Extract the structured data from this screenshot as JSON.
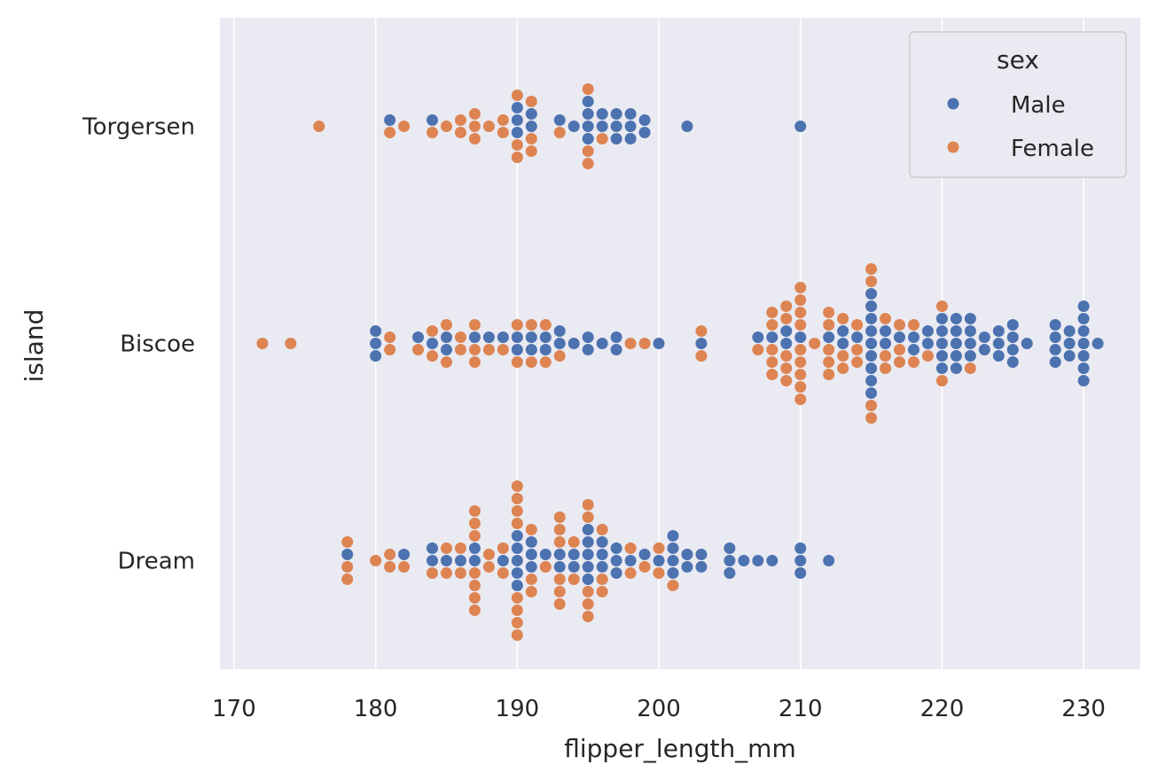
{
  "chart_data": {
    "type": "scatter",
    "subtype": "swarm",
    "title": "",
    "xlabel": "flipper_length_mm",
    "ylabel": "island",
    "xlim": [
      169,
      234
    ],
    "x_ticks": [
      170,
      180,
      190,
      200,
      210,
      220,
      230
    ],
    "categories": [
      "Torgersen",
      "Biscoe",
      "Dream"
    ],
    "grid": "vertical",
    "legend": {
      "title": "sex",
      "placement": "top-right"
    },
    "series": [
      {
        "name": "Male",
        "color": "#4c72b0",
        "points": {
          "Torgersen": [
            181,
            184,
            190,
            190,
            190,
            191,
            191,
            193,
            194,
            195,
            195,
            195,
            195,
            196,
            196,
            197,
            197,
            197,
            198,
            198,
            198,
            199,
            199,
            202,
            210
          ],
          "Biscoe": [
            180,
            180,
            180,
            183,
            184,
            185,
            185,
            187,
            188,
            189,
            190,
            190,
            191,
            191,
            192,
            192,
            193,
            193,
            194,
            195,
            195,
            196,
            197,
            197,
            200,
            203,
            207,
            208,
            209,
            209,
            210,
            212,
            213,
            213,
            214,
            215,
            215,
            215,
            215,
            215,
            215,
            215,
            215,
            215,
            216,
            216,
            217,
            218,
            218,
            219,
            219,
            220,
            220,
            220,
            220,
            220,
            221,
            221,
            221,
            221,
            221,
            222,
            222,
            222,
            222,
            223,
            223,
            224,
            224,
            224,
            225,
            225,
            225,
            225,
            226,
            228,
            228,
            228,
            228,
            229,
            229,
            229,
            230,
            230,
            230,
            230,
            230,
            230,
            230,
            231
          ],
          "Dream": [
            178,
            182,
            184,
            184,
            185,
            186,
            187,
            187,
            189,
            190,
            190,
            190,
            190,
            190,
            191,
            191,
            191,
            192,
            193,
            193,
            194,
            194,
            195,
            195,
            195,
            195,
            195,
            196,
            196,
            196,
            197,
            197,
            197,
            198,
            199,
            200,
            201,
            201,
            201,
            201,
            202,
            202,
            203,
            203,
            205,
            205,
            205,
            206,
            207,
            208,
            210,
            210,
            210,
            212
          ]
        }
      },
      {
        "name": "Female",
        "color": "#dd8452",
        "points": {
          "Torgersen": [
            176,
            181,
            182,
            184,
            185,
            186,
            186,
            187,
            187,
            187,
            188,
            189,
            189,
            190,
            190,
            190,
            191,
            191,
            191,
            193,
            195,
            195,
            195,
            196
          ],
          "Biscoe": [
            172,
            174,
            181,
            181,
            183,
            184,
            184,
            185,
            185,
            186,
            186,
            187,
            187,
            187,
            188,
            189,
            190,
            190,
            191,
            191,
            192,
            192,
            193,
            198,
            199,
            203,
            203,
            207,
            208,
            208,
            208,
            208,
            208,
            209,
            209,
            209,
            209,
            209,
            210,
            210,
            210,
            210,
            210,
            210,
            210,
            210,
            210,
            211,
            212,
            212,
            212,
            212,
            212,
            213,
            213,
            213,
            214,
            214,
            214,
            215,
            215,
            215,
            215,
            216,
            216,
            216,
            217,
            217,
            217,
            218,
            218,
            219,
            220,
            220,
            222
          ],
          "Dream": [
            178,
            178,
            178,
            180,
            181,
            181,
            182,
            184,
            185,
            185,
            186,
            186,
            187,
            187,
            187,
            187,
            187,
            187,
            187,
            188,
            188,
            189,
            189,
            190,
            190,
            190,
            190,
            190,
            190,
            190,
            190,
            191,
            191,
            191,
            192,
            193,
            193,
            193,
            193,
            193,
            193,
            194,
            194,
            195,
            195,
            195,
            195,
            195,
            196,
            196,
            196,
            198,
            198,
            199,
            200,
            200,
            201
          ]
        }
      }
    ]
  }
}
